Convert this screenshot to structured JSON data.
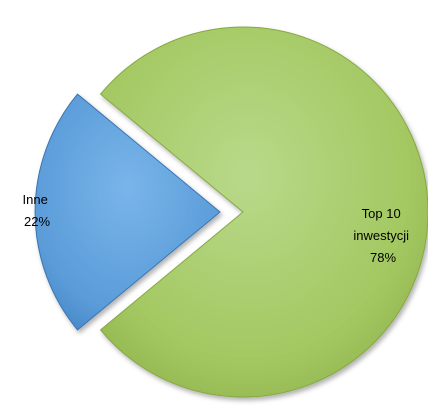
{
  "chart_data": {
    "type": "pie",
    "categories": [
      "Top 10 inwestycji",
      "Inne"
    ],
    "values": [
      78,
      22
    ],
    "labels": [
      {
        "lines": [
          "Top 10",
          "inwestycji",
          "78%"
        ]
      },
      {
        "lines": [
          "Inne",
          "22%"
        ]
      }
    ],
    "exploded": [
      false,
      true
    ],
    "colors": [
      "#a4c862",
      "#5a9bd8"
    ],
    "title": "",
    "legend": "none"
  }
}
